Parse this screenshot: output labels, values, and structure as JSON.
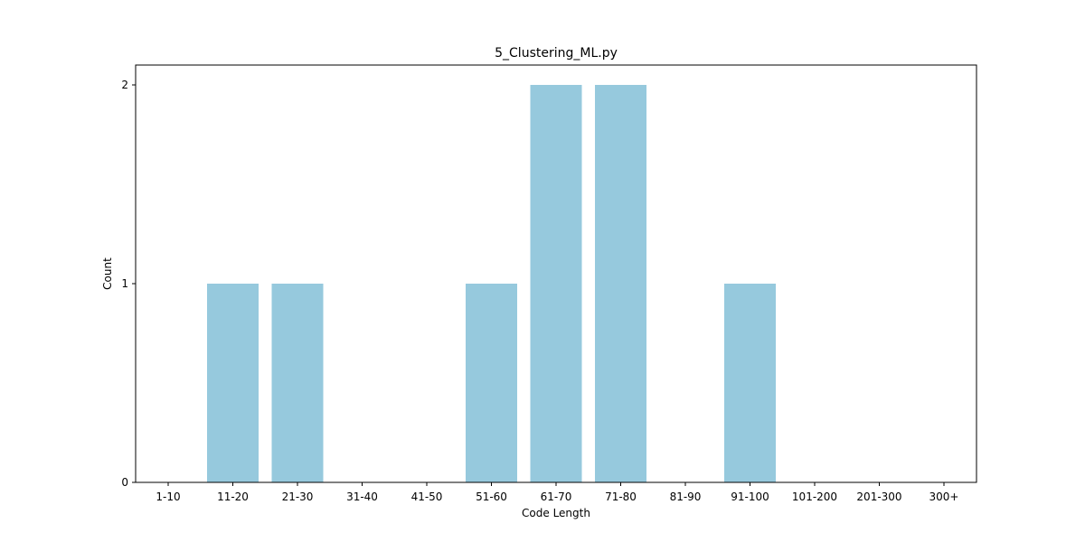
{
  "chart_data": {
    "type": "bar",
    "title": "5_Clustering_ML.py",
    "xlabel": "Code Length",
    "ylabel": "Count",
    "categories": [
      "1-10",
      "11-20",
      "21-30",
      "31-40",
      "41-50",
      "51-60",
      "61-70",
      "71-80",
      "81-90",
      "91-100",
      "101-200",
      "201-300",
      "300+"
    ],
    "values": [
      0,
      1,
      1,
      0,
      0,
      1,
      2,
      2,
      0,
      1,
      0,
      0,
      0
    ],
    "ylim": [
      0,
      2.1
    ],
    "yticks": [
      0,
      1,
      2
    ],
    "grid": false,
    "bar_color": "#96c9dd"
  }
}
